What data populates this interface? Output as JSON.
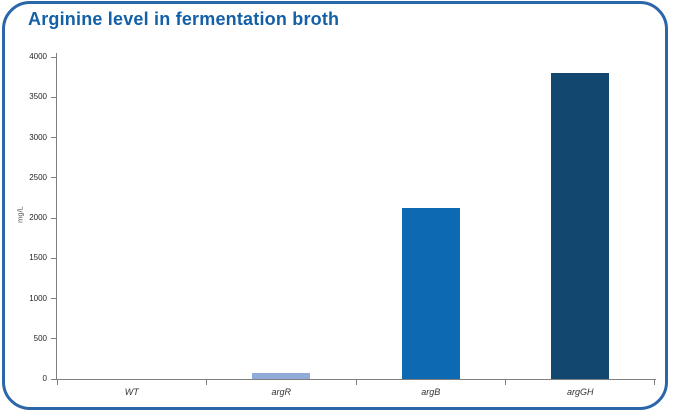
{
  "card": {
    "border_color": "#2b66a8",
    "background": "#ffffff"
  },
  "chart_data": {
    "type": "bar",
    "title": "Arginine level in fermentation broth",
    "title_color": "#1460a7",
    "xlabel": "",
    "ylabel": "mg/L",
    "categories": [
      "WT",
      "argR",
      "argB",
      "argGH"
    ],
    "values": [
      0,
      75,
      2130,
      3800
    ],
    "bar_colors": [
      "#0d6ab2",
      "#90abd8",
      "#0d6ab2",
      "#12486f"
    ],
    "ylim": [
      0,
      4000
    ],
    "yticks": [
      0,
      500,
      1000,
      1500,
      2000,
      2500,
      3000,
      3500,
      4000
    ],
    "grid": false,
    "legend": "none",
    "axis_color": "#7f7f7f"
  }
}
